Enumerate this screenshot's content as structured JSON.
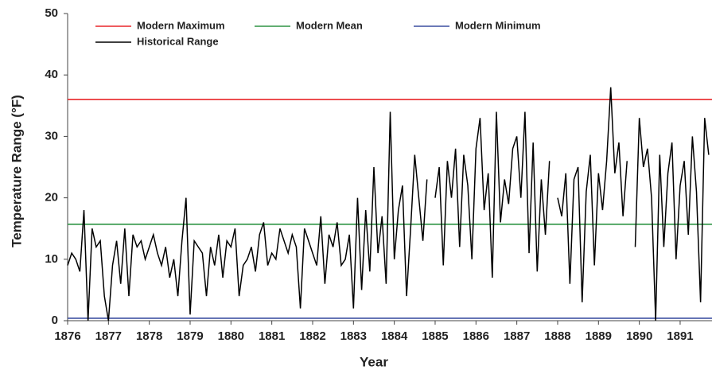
{
  "chart_data": {
    "type": "line",
    "xlabel": "Year",
    "ylabel": "Temperature Range (°F)",
    "xlim": [
      1876,
      1891.78
    ],
    "ylim": [
      0,
      50
    ],
    "xticks": [
      1876,
      1877,
      1878,
      1879,
      1880,
      1881,
      1882,
      1883,
      1884,
      1885,
      1886,
      1887,
      1888,
      1889,
      1890,
      1891
    ],
    "yticks": [
      0,
      10,
      20,
      30,
      40,
      50
    ],
    "reference_lines": [
      {
        "name": "Modern Maximum",
        "color": "#e8262a",
        "value": 36
      },
      {
        "name": "Modern Mean",
        "color": "#2e9444",
        "value": 15.7
      },
      {
        "name": "Modern Minimum",
        "color": "#3b4fa0",
        "value": 0.4
      }
    ],
    "x": [
      1876,
      1876.1,
      1876.2,
      1876.3,
      1876.4,
      1876.5,
      1876.6,
      1876.7,
      1876.8,
      1876.9,
      1877,
      1877.1,
      1877.2,
      1877.3,
      1877.4,
      1877.5,
      1877.6,
      1877.7,
      1877.8,
      1877.9,
      1878,
      1878.1,
      1878.2,
      1878.3,
      1878.4,
      1878.5,
      1878.6,
      1878.7,
      1878.8,
      1878.9,
      1879,
      1879.1,
      1879.2,
      1879.3,
      1879.4,
      1879.5,
      1879.6,
      1879.7,
      1879.8,
      1879.9,
      1880,
      1880.1,
      1880.2,
      1880.3,
      1880.4,
      1880.5,
      1880.6,
      1880.7,
      1880.8,
      1880.9,
      1881,
      1881.1,
      1881.2,
      1881.3,
      1881.4,
      1881.5,
      1881.6,
      1881.7,
      1881.8,
      1881.9,
      1882,
      1882.1,
      1882.2,
      1882.3,
      1882.4,
      1882.5,
      1882.6,
      1882.7,
      1882.8,
      1882.9,
      1883,
      1883.1,
      1883.2,
      1883.3,
      1883.4,
      1883.5,
      1883.6,
      1883.7,
      1883.8,
      1883.9,
      1884,
      1884.1,
      1884.2,
      1884.3,
      1884.4,
      1884.5,
      1884.6,
      1884.7,
      1884.8,
      1884.9,
      1885,
      1885.1,
      1885.2,
      1885.3,
      1885.4,
      1885.5,
      1885.6,
      1885.7,
      1885.8,
      1885.9,
      1886,
      1886.1,
      1886.2,
      1886.3,
      1886.4,
      1886.5,
      1886.6,
      1886.7,
      1886.8,
      1886.9,
      1887,
      1887.1,
      1887.2,
      1887.3,
      1887.4,
      1887.5,
      1887.6,
      1887.7,
      1887.8,
      1887.9,
      1888,
      1888.1,
      1888.2,
      1888.3,
      1888.4,
      1888.5,
      1888.6,
      1888.7,
      1888.8,
      1888.9,
      1889,
      1889.1,
      1889.2,
      1889.3,
      1889.4,
      1889.5,
      1889.6,
      1889.7,
      1889.8,
      1889.9,
      1890,
      1890.1,
      1890.2,
      1890.3,
      1890.4,
      1890.5,
      1890.6,
      1890.7,
      1890.8,
      1890.9,
      1891,
      1891.1,
      1891.2,
      1891.3,
      1891.4,
      1891.5,
      1891.6,
      1891.7
    ],
    "series": [
      {
        "name": "Historical Range",
        "color": "#000000",
        "values": [
          9,
          11,
          10,
          8,
          18,
          0,
          15,
          12,
          13,
          4,
          0,
          9,
          13,
          6,
          15,
          4,
          14,
          12,
          13,
          10,
          12,
          14,
          11,
          9,
          12,
          7,
          10,
          4,
          13,
          20,
          1,
          13,
          12,
          11,
          4,
          12,
          9,
          14,
          7,
          13,
          12,
          15,
          4,
          9,
          10,
          12,
          8,
          14,
          16,
          9,
          11,
          10,
          15,
          13,
          11,
          14,
          12,
          2,
          15,
          13,
          11,
          9,
          17,
          6,
          14,
          12,
          16,
          9,
          10,
          14,
          2,
          20,
          5,
          18,
          8,
          25,
          11,
          17,
          6,
          34,
          10,
          18,
          22,
          4,
          15,
          27,
          20,
          13,
          23,
          null,
          20,
          25,
          9,
          26,
          20,
          28,
          12,
          27,
          22,
          10,
          28,
          33,
          18,
          24,
          7,
          34,
          16,
          23,
          19,
          28,
          30,
          20,
          34,
          11,
          29,
          8,
          23,
          14,
          26,
          null,
          20,
          17,
          24,
          6,
          23,
          25,
          3,
          21,
          27,
          9,
          24,
          18,
          26,
          38,
          24,
          29,
          17,
          26,
          null,
          12,
          33,
          25,
          28,
          20,
          0,
          27,
          12,
          24,
          29,
          10,
          22,
          26,
          14,
          30,
          21,
          3,
          33,
          27
        ]
      }
    ]
  }
}
